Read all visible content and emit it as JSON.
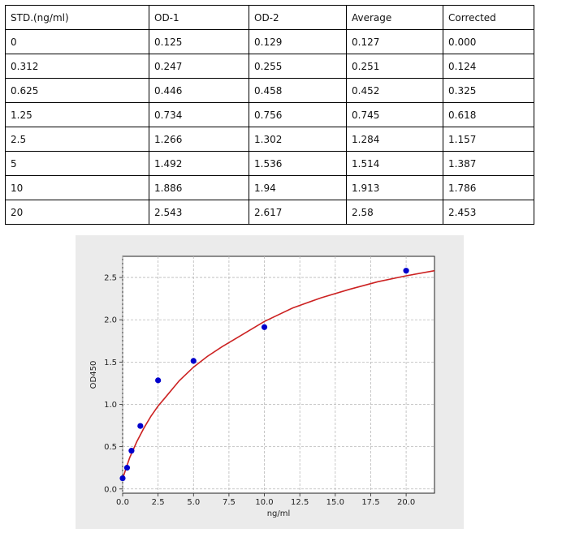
{
  "table": {
    "headers": [
      "STD.(ng/ml)",
      "OD-1",
      "OD-2",
      "Average",
      "Corrected"
    ],
    "rows": [
      [
        "0",
        "0.125",
        "0.129",
        "0.127",
        "0.000"
      ],
      [
        "0.312",
        "0.247",
        "0.255",
        "0.251",
        "0.124"
      ],
      [
        "0.625",
        "0.446",
        "0.458",
        "0.452",
        "0.325"
      ],
      [
        "1.25",
        "0.734",
        "0.756",
        "0.745",
        "0.618"
      ],
      [
        "2.5",
        "1.266",
        "1.302",
        "1.284",
        "1.157"
      ],
      [
        "5",
        "1.492",
        "1.536",
        "1.514",
        "1.387"
      ],
      [
        "10",
        "1.886",
        "1.94",
        "1.913",
        "1.786"
      ],
      [
        "20",
        "2.543",
        "2.617",
        "2.58",
        "2.453"
      ]
    ]
  },
  "chart_data": {
    "type": "scatter",
    "xlabel": "ng/ml",
    "ylabel": "OD450",
    "xlim": [
      0,
      22
    ],
    "ylim": [
      -0.05,
      2.75
    ],
    "xticks": [
      "0.0",
      "2.5",
      "5.0",
      "7.5",
      "10.0",
      "12.5",
      "15.0",
      "17.5",
      "20.0"
    ],
    "yticks": [
      "0.0",
      "0.5",
      "1.0",
      "1.5",
      "2.0",
      "2.5"
    ],
    "grid": true,
    "points": {
      "x": [
        0,
        0.312,
        0.625,
        1.25,
        2.5,
        5,
        10,
        20
      ],
      "y": [
        0.127,
        0.251,
        0.452,
        0.745,
        1.284,
        1.514,
        1.913,
        2.58
      ],
      "color": "#0000cc"
    },
    "fit_curve": {
      "x": [
        0,
        0.25,
        0.5,
        1,
        1.5,
        2,
        2.5,
        3,
        4,
        5,
        6,
        7,
        8,
        10,
        12,
        14,
        16,
        18,
        20,
        22
      ],
      "y": [
        0.12,
        0.25,
        0.37,
        0.56,
        0.72,
        0.86,
        0.98,
        1.08,
        1.28,
        1.44,
        1.57,
        1.68,
        1.78,
        1.98,
        2.14,
        2.26,
        2.36,
        2.45,
        2.52,
        2.58
      ],
      "color": "#cc2222"
    }
  }
}
